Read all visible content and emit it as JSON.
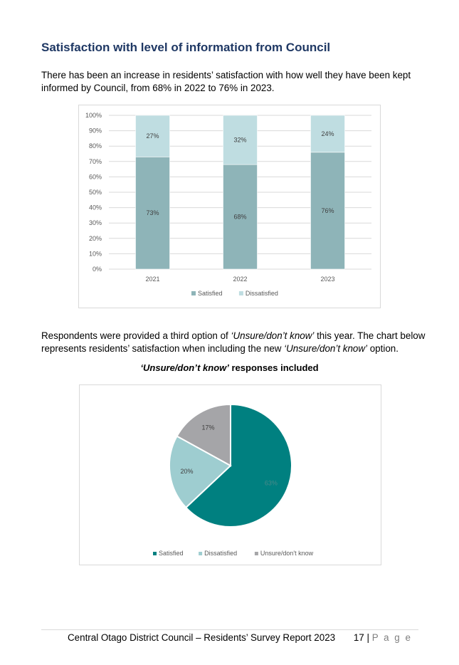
{
  "heading": "Satisfaction with level of information from Council",
  "intro": "There has been an increase in residents’ satisfaction with how well they have been kept informed by Council, from 68% in 2022 to 76% in 2023.",
  "paragraph2": {
    "t1": "Respondents were provided a third option of ",
    "em1": "‘Unsure/don’t know’",
    "t2": " this year. The chart below represents residents’ satisfaction when including the new ",
    "em2": "‘Unsure/don’t know’",
    "t3": " option."
  },
  "pie_heading": {
    "em": "‘Unsure/don’t know’",
    "rest": " responses included"
  },
  "footer": {
    "text": "Central Otago District Council – Residents’ Survey Report 2023",
    "page": "17",
    "sep": "|",
    "page_word": "P a g e"
  },
  "colors": {
    "satisfied_bar": "#8eb4b8",
    "dissatisfied_bar": "#bfdde1",
    "satisfied_pie": "#008080",
    "dissatisfied_pie": "#9ecdd0",
    "unsure_pie": "#a5a5a8",
    "heading": "#1f3864"
  },
  "chart_data": [
    {
      "type": "bar",
      "stacked": true,
      "categories": [
        "2021",
        "2022",
        "2023"
      ],
      "series": [
        {
          "name": "Satisfied",
          "values": [
            73,
            68,
            76
          ],
          "labels": [
            "73%",
            "68%",
            "76%"
          ]
        },
        {
          "name": "Dissatisfied",
          "values": [
            27,
            32,
            24
          ],
          "labels": [
            "27%",
            "32%",
            "24%"
          ]
        }
      ],
      "ylim": [
        0,
        100
      ],
      "yticks": [
        "0%",
        "10%",
        "20%",
        "30%",
        "40%",
        "50%",
        "60%",
        "70%",
        "80%",
        "90%",
        "100%"
      ],
      "grid": true,
      "legend": "bottom"
    },
    {
      "type": "pie",
      "categories": [
        "Satisfied",
        "Dissatisfied",
        "Unsure/don't know"
      ],
      "values": [
        63,
        20,
        17
      ],
      "labels": [
        "63%",
        "20%",
        "17%"
      ],
      "legend": "bottom"
    }
  ]
}
